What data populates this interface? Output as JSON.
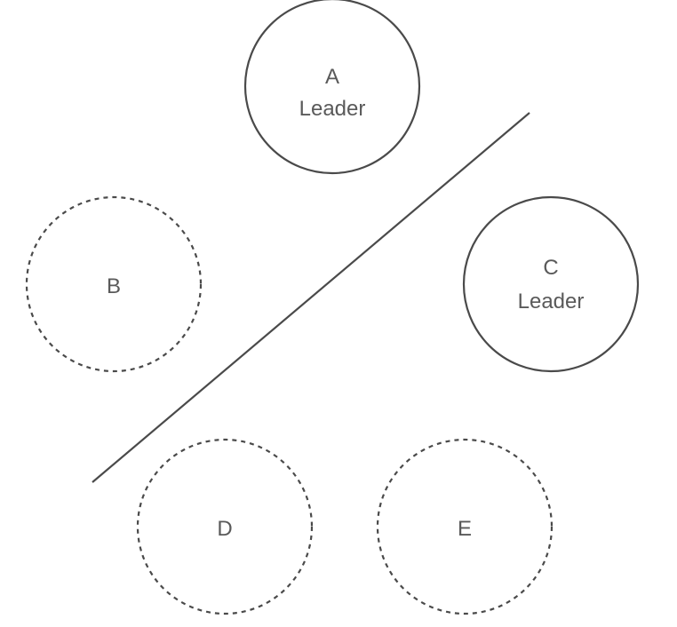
{
  "nodes": [
    {
      "id": "A",
      "role": "Leader",
      "status": "leader"
    },
    {
      "id": "B",
      "role": "",
      "status": "follower"
    },
    {
      "id": "C",
      "role": "Leader",
      "status": "leader"
    },
    {
      "id": "D",
      "role": "",
      "status": "follower"
    },
    {
      "id": "E",
      "role": "",
      "status": "follower"
    }
  ],
  "colors": {
    "stroke": "#4a4a4a",
    "text": "#5a5a5a",
    "background": "#ffffff"
  }
}
